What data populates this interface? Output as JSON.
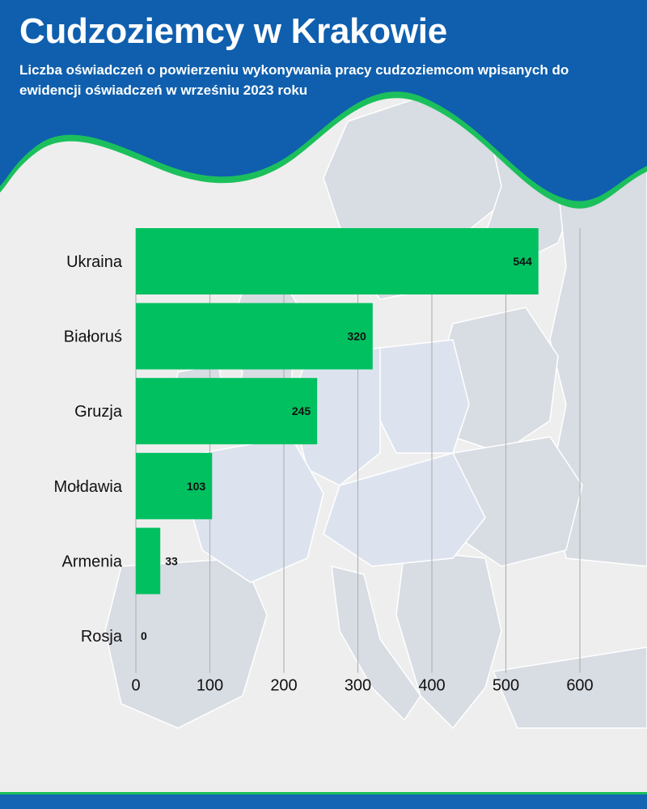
{
  "header": {
    "title": "Cudzoziemcy w Krakowie",
    "subtitle": "Liczba oświadczeń o powierzeniu wykonywania pracy cudzoziemcom wpisanych do ewidencji oświadczeń w wrześniu 2023 roku"
  },
  "colors": {
    "header_blue": "#0f5fae",
    "accent_green": "#00c060",
    "map_land": "#d8dce3",
    "map_land_alt": "#dde3ee",
    "background": "#eeeeee"
  },
  "chart_data": {
    "type": "bar",
    "orientation": "horizontal",
    "categories": [
      "Ukraina",
      "Białoruś",
      "Gruzja",
      "Mołdawia",
      "Armenia",
      "Rosja"
    ],
    "values": [
      544,
      320,
      245,
      103,
      33,
      0
    ],
    "xlim": [
      0,
      600
    ],
    "xticks": [
      0,
      100,
      200,
      300,
      400,
      500,
      600
    ],
    "grid": true,
    "data_labels": true,
    "bar_color": "#00c060"
  }
}
